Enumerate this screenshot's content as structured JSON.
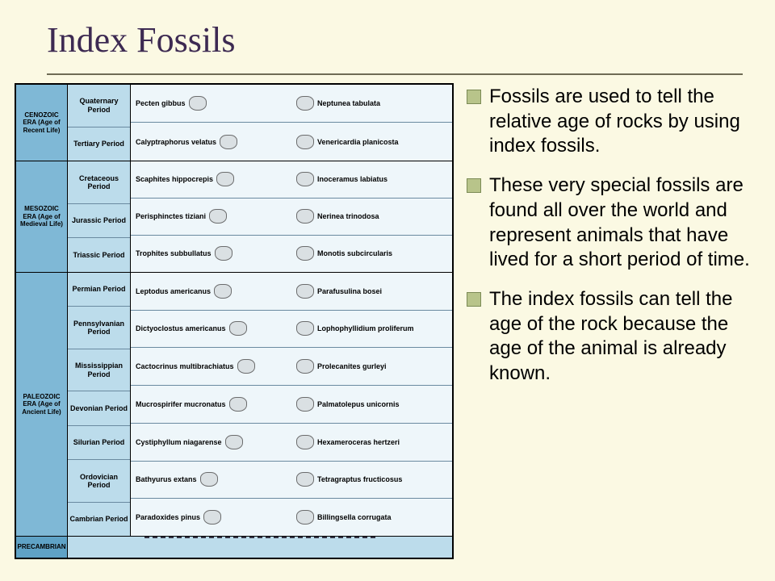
{
  "colors": {
    "slide_bg": "#fbf9e3",
    "title_color": "#3d2a52",
    "rule_color": "#6f6c55",
    "era_bg": "#7fb8d6",
    "period_bg": "#bcdceb",
    "fossil_bg": "#eef6fa",
    "precambrian_bg": "#5fa2c6",
    "spec_fill": "#d7dde0",
    "bullet_fill": "#b8c48a",
    "bullet_border": "#7b8a55"
  },
  "title": "Index Fossils",
  "bullets": [
    "Fossils are used to tell the relative age of rocks by using index fossils.",
    "These very special fossils are found all over the world and represent animals that have lived for a short period of time.",
    "The index fossils can tell the age of the rock because the age of the animal is already known."
  ],
  "chart": {
    "eras": [
      {
        "label": "CENOZOIC ERA (Age of Recent Life)",
        "periods": [
          {
            "name": "Quaternary Period",
            "left": "Pecten gibbus",
            "right": "Neptunea tabulata"
          },
          {
            "name": "Tertiary Period",
            "left": "Calyptraphorus velatus",
            "right": "Venericardia planicosta"
          }
        ]
      },
      {
        "label": "MESOZOIC ERA (Age of Medieval Life)",
        "periods": [
          {
            "name": "Cretaceous Period",
            "left": "Scaphites hippocrepis",
            "right": "Inoceramus labiatus"
          },
          {
            "name": "Jurassic Period",
            "left": "Perisphinctes tiziani",
            "right": "Nerinea trinodosa"
          },
          {
            "name": "Triassic Period",
            "left": "Trophites subbullatus",
            "right": "Monotis subcircularis"
          }
        ]
      },
      {
        "label": "PALEOZOIC ERA (Age of Ancient Life)",
        "periods": [
          {
            "name": "Permian Period",
            "left": "Leptodus americanus",
            "right": "Parafusulina bosei"
          },
          {
            "name": "Pennsylvanian Period",
            "left": "Dictyoclostus americanus",
            "right": "Lophophyllidium proliferum"
          },
          {
            "name": "Mississippian Period",
            "left": "Cactocrinus multibrachiatus",
            "right": "Prolecanites gurleyi"
          },
          {
            "name": "Devonian Period",
            "left": "Mucrospirifer mucronatus",
            "right": "Palmatolepus unicornis"
          },
          {
            "name": "Silurian Period",
            "left": "Cystiphyllum niagarense",
            "right": "Hexameroceras hertzeri"
          },
          {
            "name": "Ordovician Period",
            "left": "Bathyurus extans",
            "right": "Tetragraptus fructicosus"
          },
          {
            "name": "Cambrian Period",
            "left": "Paradoxides pinus",
            "right": "Billingsella corrugata"
          }
        ]
      }
    ],
    "precambrian_label": "PRECAMBRIAN"
  }
}
